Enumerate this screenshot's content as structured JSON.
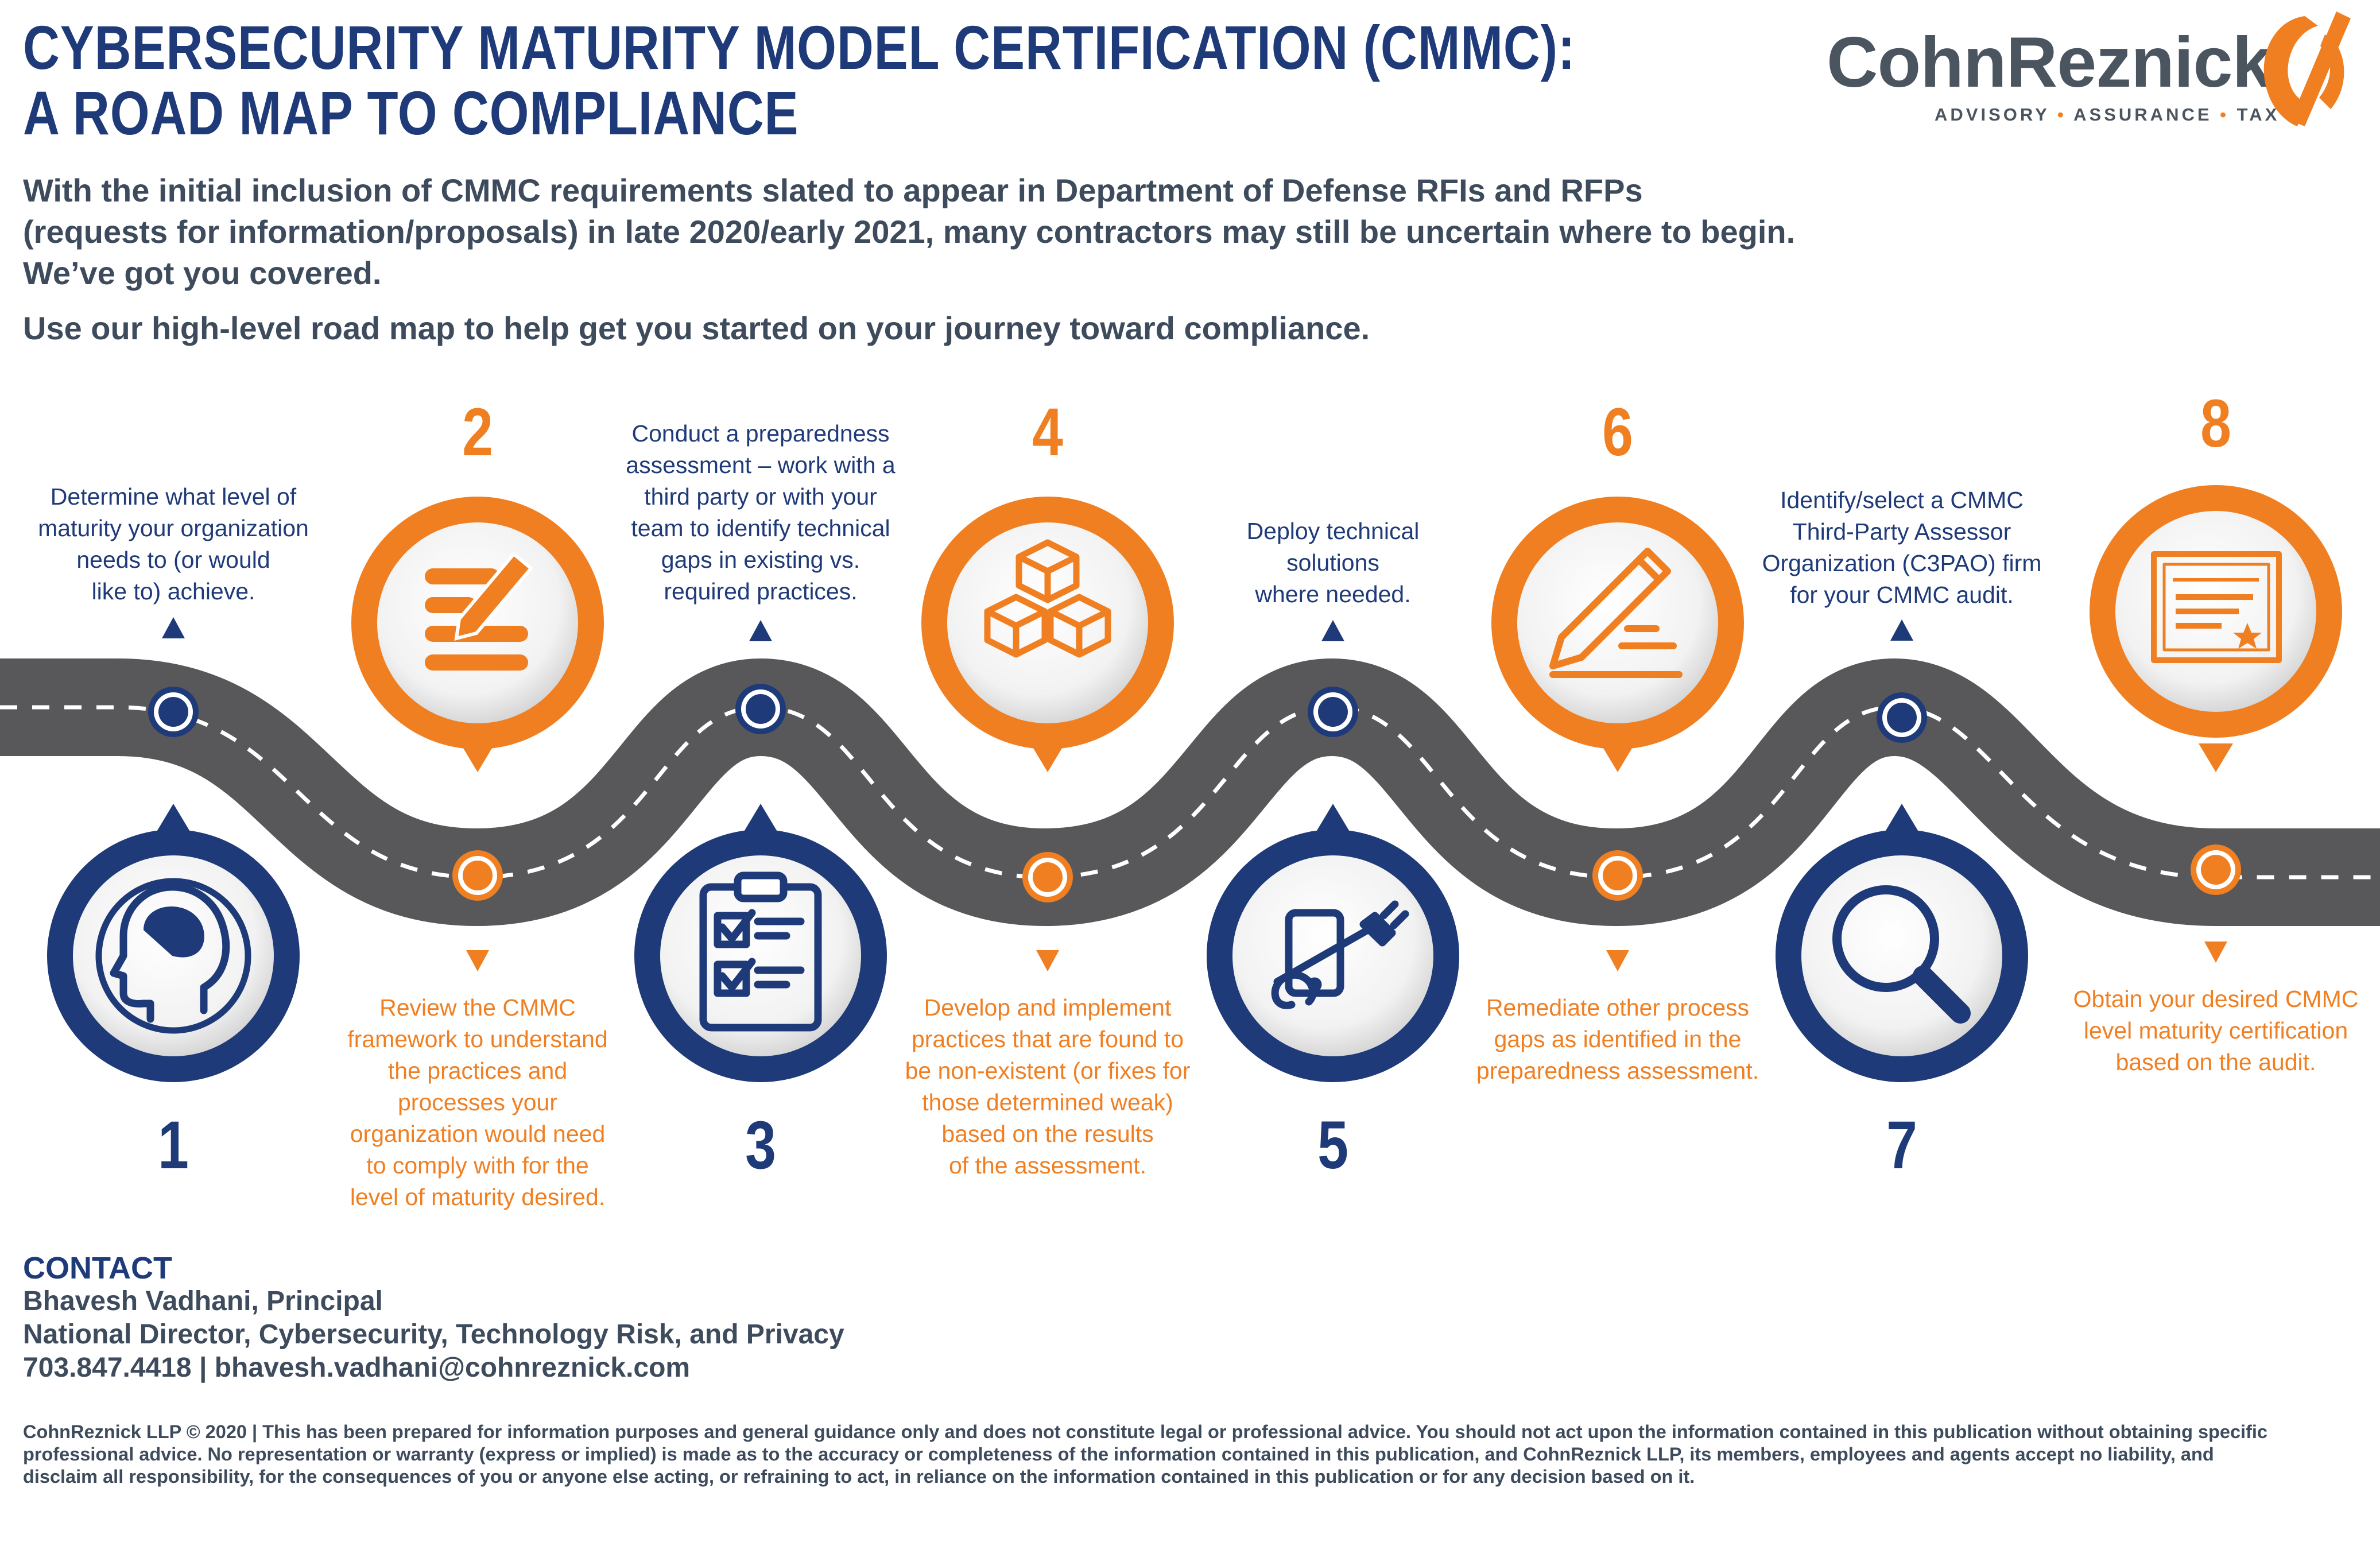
{
  "title": {
    "line1": "CYBERSECURITY MATURITY MODEL CERTIFICATION (CMMC):",
    "line2": "A ROAD MAP TO COMPLIANCE"
  },
  "logo": {
    "name": "CohnReznick",
    "tag1": "ADVISORY",
    "tag2": "ASSURANCE",
    "tag3": "TAX",
    "separator": "•"
  },
  "intro": {
    "line1": "With the initial inclusion of CMMC requirements slated to appear in Department of Defense RFIs and RFPs",
    "line2": "(requests for information/proposals) in late 2020/early 2021, many contractors may still be uncertain where to begin.",
    "line3": "We’ve got you covered.",
    "line4": "Use our high-level road map to help get you started on your journey toward compliance."
  },
  "colors": {
    "navy": "#1e3a78",
    "orange": "#f07f21",
    "road": "#58585a",
    "text": "#3d4b5c"
  },
  "steps": [
    {
      "number": "1",
      "icon": "head-brain-icon",
      "lines": [
        "Determine what level of",
        "maturity your organization",
        "needs to (or would",
        "like to) achieve."
      ]
    },
    {
      "number": "2",
      "icon": "checklist-pen-icon",
      "lines": [
        "Review the CMMC",
        "framework to understand",
        "the practices and",
        "processes your",
        "organization would need",
        "to comply with for the",
        "level of maturity desired."
      ]
    },
    {
      "number": "3",
      "icon": "clipboard-checklist-icon",
      "lines": [
        "Conduct a preparedness",
        "assessment – work with a",
        "third party or with your",
        "team to identify technical",
        "gaps in existing vs.",
        "required practices."
      ]
    },
    {
      "number": "4",
      "icon": "stacked-cubes-icon",
      "lines": [
        "Develop and implement",
        "practices that are found to",
        "be non-existent (or fixes for",
        "those determined weak)",
        "based on the results",
        "of the assessment."
      ]
    },
    {
      "number": "5",
      "icon": "tablet-plug-icon",
      "lines": [
        "Deploy technical",
        "solutions",
        "where needed."
      ]
    },
    {
      "number": "6",
      "icon": "pencil-document-icon",
      "lines": [
        "Remediate other process",
        "gaps as identified in the",
        "preparedness assessment."
      ]
    },
    {
      "number": "7",
      "icon": "magnifying-glass-icon",
      "lines": [
        "Identify/select a CMMC",
        "Third-Party Assessor",
        "Organization (C3PAO) firm",
        "for your CMMC audit."
      ]
    },
    {
      "number": "8",
      "icon": "certificate-icon",
      "lines": [
        "Obtain your desired CMMC",
        "level maturity certification",
        "based on the audit."
      ]
    }
  ],
  "contact": {
    "heading": "CONTACT",
    "name": "Bhavesh Vadhani, Principal",
    "role": "National Director, Cybersecurity, Technology Risk, and Privacy",
    "phone_email": "703.847.4418 | bhavesh.vadhani@cohnreznick.com"
  },
  "disclaimer": {
    "line1": "CohnReznick LLP © 2020 | This has been prepared for information purposes and general guidance only and does not constitute legal or professional advice. You should not act upon the information contained in this publication without obtaining specific",
    "line2": "professional advice. No representation or warranty (express or implied) is made as to the accuracy or completeness of the information contained in this publication, and CohnReznick LLP, its members, employees and agents accept no liability, and",
    "line3": "disclaim all responsibility, for the consequences of you or anyone else acting, or refraining to act, in reliance on the information contained in this publication or for any decision based on it."
  }
}
